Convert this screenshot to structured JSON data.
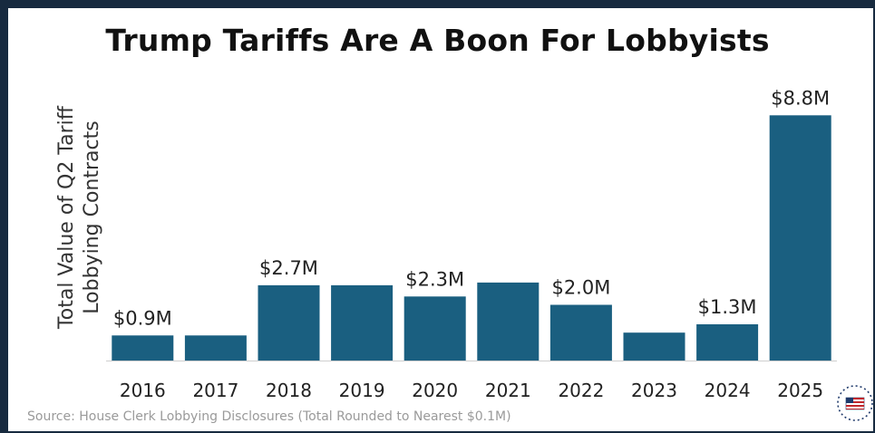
{
  "chart_data": {
    "type": "bar",
    "title": "Trump Tariffs Are A Boon For Lobbyists",
    "ylabel_lines": [
      "Total Value of Q2 Tariff",
      "Lobbying Contracts"
    ],
    "categories": [
      "2016",
      "2017",
      "2018",
      "2019",
      "2020",
      "2021",
      "2022",
      "2023",
      "2024",
      "2025"
    ],
    "values": [
      0.9,
      0.9,
      2.7,
      2.7,
      2.3,
      2.8,
      2.0,
      1.0,
      1.3,
      8.8
    ],
    "data_labels": [
      "$0.9M",
      "",
      "$2.7M",
      "",
      "$2.3M",
      "",
      "$2.0M",
      "",
      "$1.3M",
      "$8.8M"
    ],
    "ylim": [
      0,
      9.2
    ],
    "unit": "$M",
    "grid": false,
    "bar_color": "#1a5f80",
    "source": "Source:  House Clerk Lobbying Disclosures (Total Rounded to Nearest  $0.1M)"
  },
  "colors": {
    "frame": "#172a3f",
    "bar": "#1a5f80",
    "axis": "#cfcfcf"
  },
  "logo": {
    "icon": "us-flag-seal-icon"
  }
}
